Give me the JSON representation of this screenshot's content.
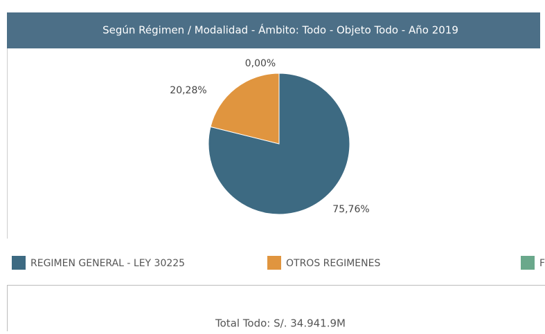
{
  "chart_data": {
    "type": "pie",
    "title": "Según Régimen / Modalidad - Ámbito: Todo - Objeto Todo - Año 2019",
    "series": [
      {
        "name": "REGIMEN GENERAL - LEY 30225",
        "color": "#3d6a82",
        "values": [
          75.76
        ],
        "value_labels": [
          "75,76%"
        ]
      },
      {
        "name": "OTROS REGIMENES",
        "color": "#e0953f",
        "values": [
          20.28
        ],
        "value_labels": [
          "20,28%"
        ]
      },
      {
        "name": "F",
        "color": "#6aa88b",
        "values": [
          0.0
        ],
        "value_labels": [
          "0,00%"
        ]
      }
    ]
  },
  "total": "Total Todo: S/. 34.941.9M"
}
